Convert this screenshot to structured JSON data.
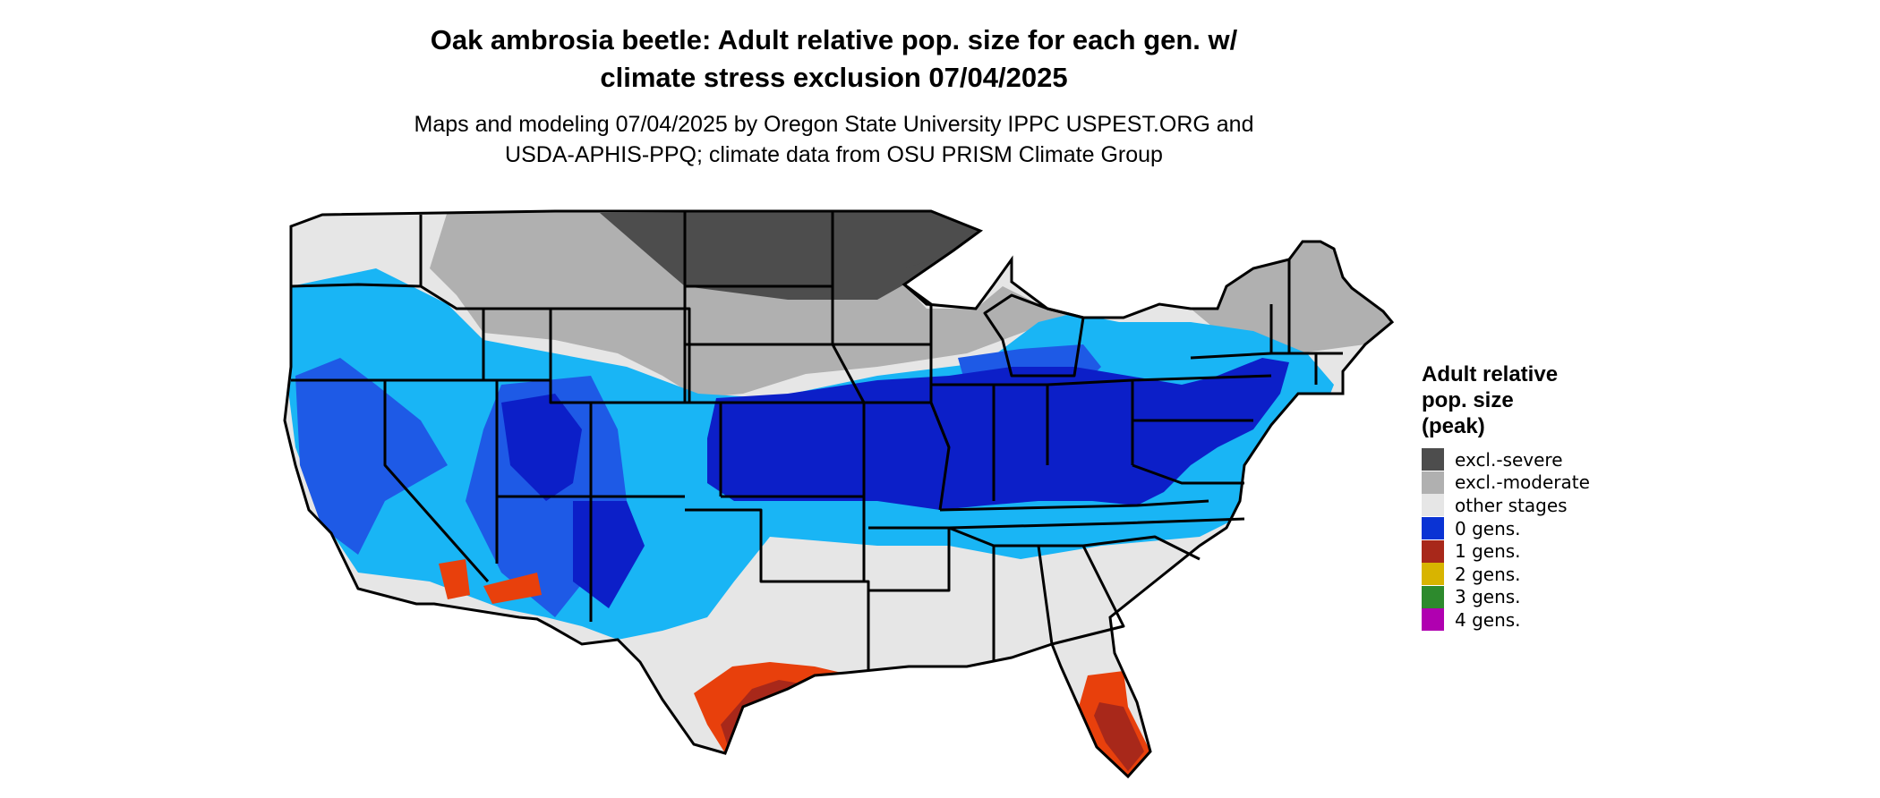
{
  "title_lines": [
    "Oak ambrosia beetle: Adult relative pop. size for each gen. w/",
    "climate stress exclusion 07/04/2025"
  ],
  "subtitle_lines": [
    "Maps and modeling 07/04/2025 by Oregon State University IPPC USPEST.ORG and",
    "USDA-APHIS-PPQ; climate data from OSU PRISM Climate Group"
  ],
  "legend": {
    "title_lines": [
      "Adult relative",
      "pop. size",
      "(peak)"
    ],
    "items": [
      {
        "label": "excl.-severe",
        "color": "#4d4d4d"
      },
      {
        "label": "excl.-moderate",
        "color": "#b0b0b0"
      },
      {
        "label": "other stages",
        "color": "#e6e6e6"
      },
      {
        "label": "0 gens.",
        "color": "#0a33d4"
      },
      {
        "label": "1 gens.",
        "color": "#a8281a"
      },
      {
        "label": "2 gens.",
        "color": "#d8b400"
      },
      {
        "label": "3 gens.",
        "color": "#2d8a2d"
      },
      {
        "label": "4 gens.",
        "color": "#b000b0"
      }
    ]
  },
  "map_palette": {
    "other_stages": "#e6e6e6",
    "excl_moderate": "#b0b0b0",
    "excl_severe": "#4d4d4d",
    "zero_gens_light": "#19b5f5",
    "zero_gens_mid": "#1e5ae6",
    "zero_gens_dark": "#0c1fc8",
    "one_gen_orange": "#e8400c",
    "one_gen_dark": "#a8281a",
    "border": "#000000"
  }
}
